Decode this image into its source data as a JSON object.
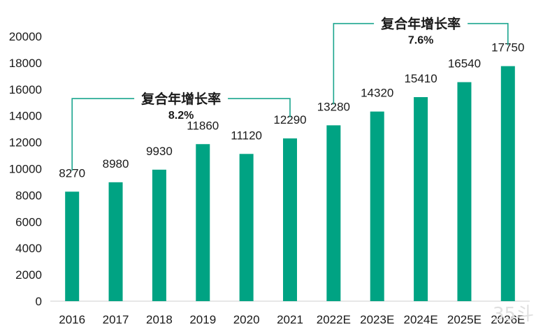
{
  "chart_data": {
    "type": "bar",
    "categories": [
      "2016",
      "2017",
      "2018",
      "2019",
      "2020",
      "2021",
      "2022E",
      "2023E",
      "2024E",
      "2025E",
      "2026E"
    ],
    "values": [
      8270,
      8980,
      9930,
      11860,
      11120,
      12290,
      13280,
      14320,
      15410,
      16540,
      17750
    ],
    "data_labels": [
      "8270",
      "8980",
      "9930",
      "11860",
      "11120",
      "12290",
      "13280",
      "14320",
      "15410",
      "16540",
      "17750"
    ],
    "yticks": [
      "0",
      "2000",
      "4000",
      "6000",
      "8000",
      "10000",
      "12000",
      "14000",
      "16000",
      "18000",
      "20000"
    ],
    "ylim": [
      0,
      20000
    ],
    "bar_color": "#00a383",
    "bracket_color": "#1aa58e",
    "grid": false,
    "annotations": [
      {
        "title": "复合年增长率",
        "value": "8.2%",
        "from": 0,
        "to": 5
      },
      {
        "title": "复合年增长率",
        "value": "7.6%",
        "from": 6,
        "to": 10
      }
    ]
  },
  "watermark": "35斗"
}
